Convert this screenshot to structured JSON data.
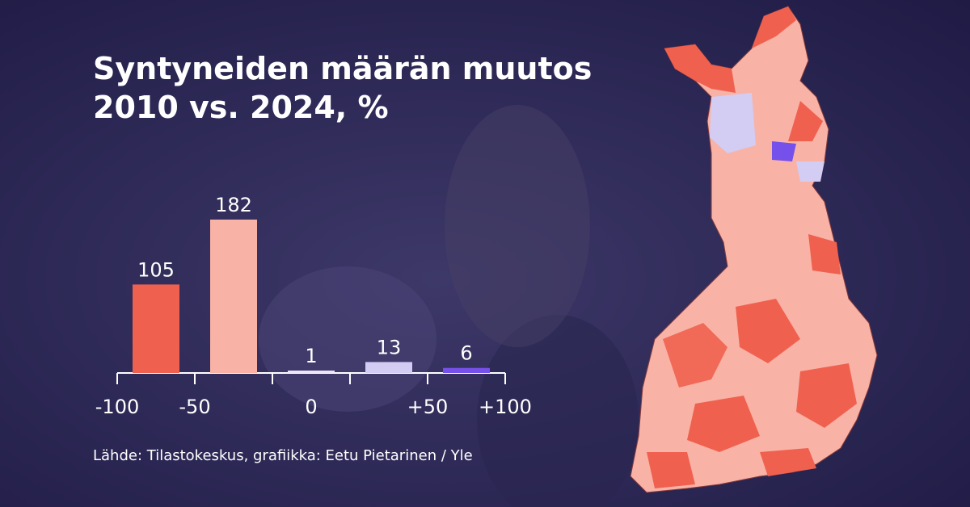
{
  "chart_data": {
    "type": "bar",
    "title": "Syntyneiden määrän muutos 2010 vs. 2024, %",
    "values": [
      105,
      182,
      1,
      13,
      6
    ],
    "colors": [
      "#f0604f",
      "#f8b3a6",
      "#ece6f7",
      "#d3ccf3",
      "#7650ea"
    ],
    "xticks": [
      {
        "value": -100,
        "label": "-100"
      },
      -50,
      0,
      {
        "value": 50,
        "label": "+50"
      },
      {
        "value": 100,
        "label": "+100"
      }
    ],
    "source": "Lähde: Tilastokeskus, grafiikka: Eetu Pietarinen / Yle"
  }
}
